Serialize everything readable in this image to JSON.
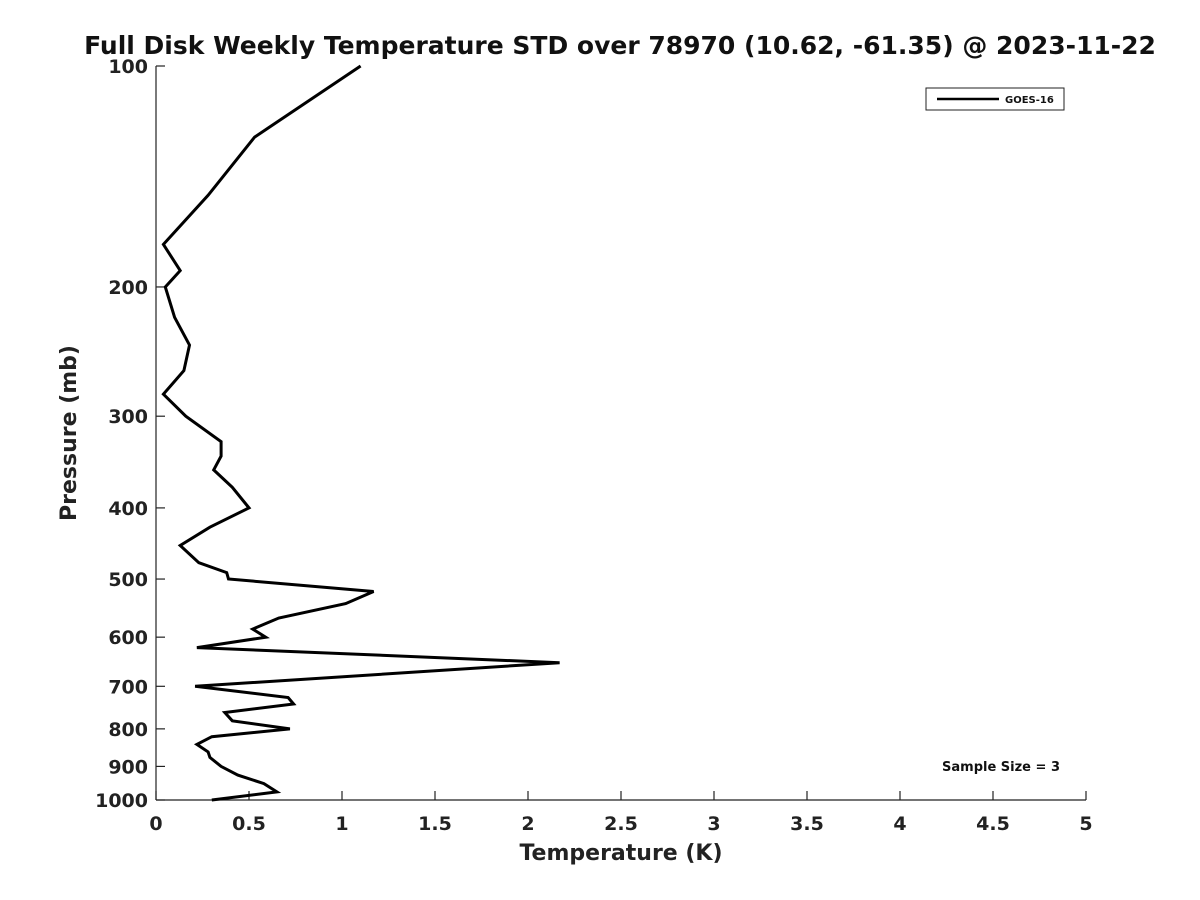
{
  "chart_data": {
    "type": "line",
    "title": "Full Disk Weekly Temperature STD over 78970 (10.62, -61.35) @ 2023-11-22",
    "xlabel": "Temperature (K)",
    "ylabel": "Pressure (mb)",
    "xlim": [
      0,
      5
    ],
    "ylim": [
      1000,
      100
    ],
    "yscale": "log",
    "y_reversed": true,
    "grid": false,
    "legend_position": "top-right",
    "x_ticks": [
      0,
      0.5,
      1,
      1.5,
      2,
      2.5,
      3,
      3.5,
      4,
      4.5,
      5
    ],
    "x_tick_labels": [
      "0",
      "0.5",
      "1",
      "1.5",
      "2",
      "2.5",
      "3",
      "3.5",
      "4",
      "4.5",
      "5"
    ],
    "y_ticks": [
      100,
      200,
      300,
      400,
      500,
      600,
      700,
      800,
      900,
      1000
    ],
    "y_tick_labels": [
      "100",
      "200",
      "300",
      "400",
      "500",
      "600",
      "700",
      "800",
      "900",
      "1000"
    ],
    "series": [
      {
        "name": "GOES-16",
        "color": "#000000",
        "points": [
          [
            1.1,
            100
          ],
          [
            0.53,
            125
          ],
          [
            0.28,
            150
          ],
          [
            0.04,
            175
          ],
          [
            0.13,
            190
          ],
          [
            0.05,
            200
          ],
          [
            0.1,
            220
          ],
          [
            0.18,
            240
          ],
          [
            0.15,
            260
          ],
          [
            0.04,
            280
          ],
          [
            0.16,
            300
          ],
          [
            0.35,
            325
          ],
          [
            0.35,
            340
          ],
          [
            0.31,
            355
          ],
          [
            0.41,
            375
          ],
          [
            0.5,
            400
          ],
          [
            0.29,
            425
          ],
          [
            0.13,
            450
          ],
          [
            0.23,
            475
          ],
          [
            0.38,
            490
          ],
          [
            0.39,
            500
          ],
          [
            1.17,
            520
          ],
          [
            1.02,
            540
          ],
          [
            0.66,
            565
          ],
          [
            0.52,
            585
          ],
          [
            0.59,
            600
          ],
          [
            0.22,
            620
          ],
          [
            2.17,
            650
          ],
          [
            0.21,
            700
          ],
          [
            0.71,
            725
          ],
          [
            0.74,
            740
          ],
          [
            0.37,
            760
          ],
          [
            0.41,
            780
          ],
          [
            0.72,
            800
          ],
          [
            0.3,
            820
          ],
          [
            0.22,
            840
          ],
          [
            0.28,
            860
          ],
          [
            0.29,
            875
          ],
          [
            0.35,
            900
          ],
          [
            0.44,
            925
          ],
          [
            0.58,
            950
          ],
          [
            0.65,
            975
          ],
          [
            0.3,
            1000
          ]
        ]
      }
    ],
    "annotations": [
      {
        "text": "Sample Size = 3",
        "position": "bottom-right"
      }
    ]
  }
}
